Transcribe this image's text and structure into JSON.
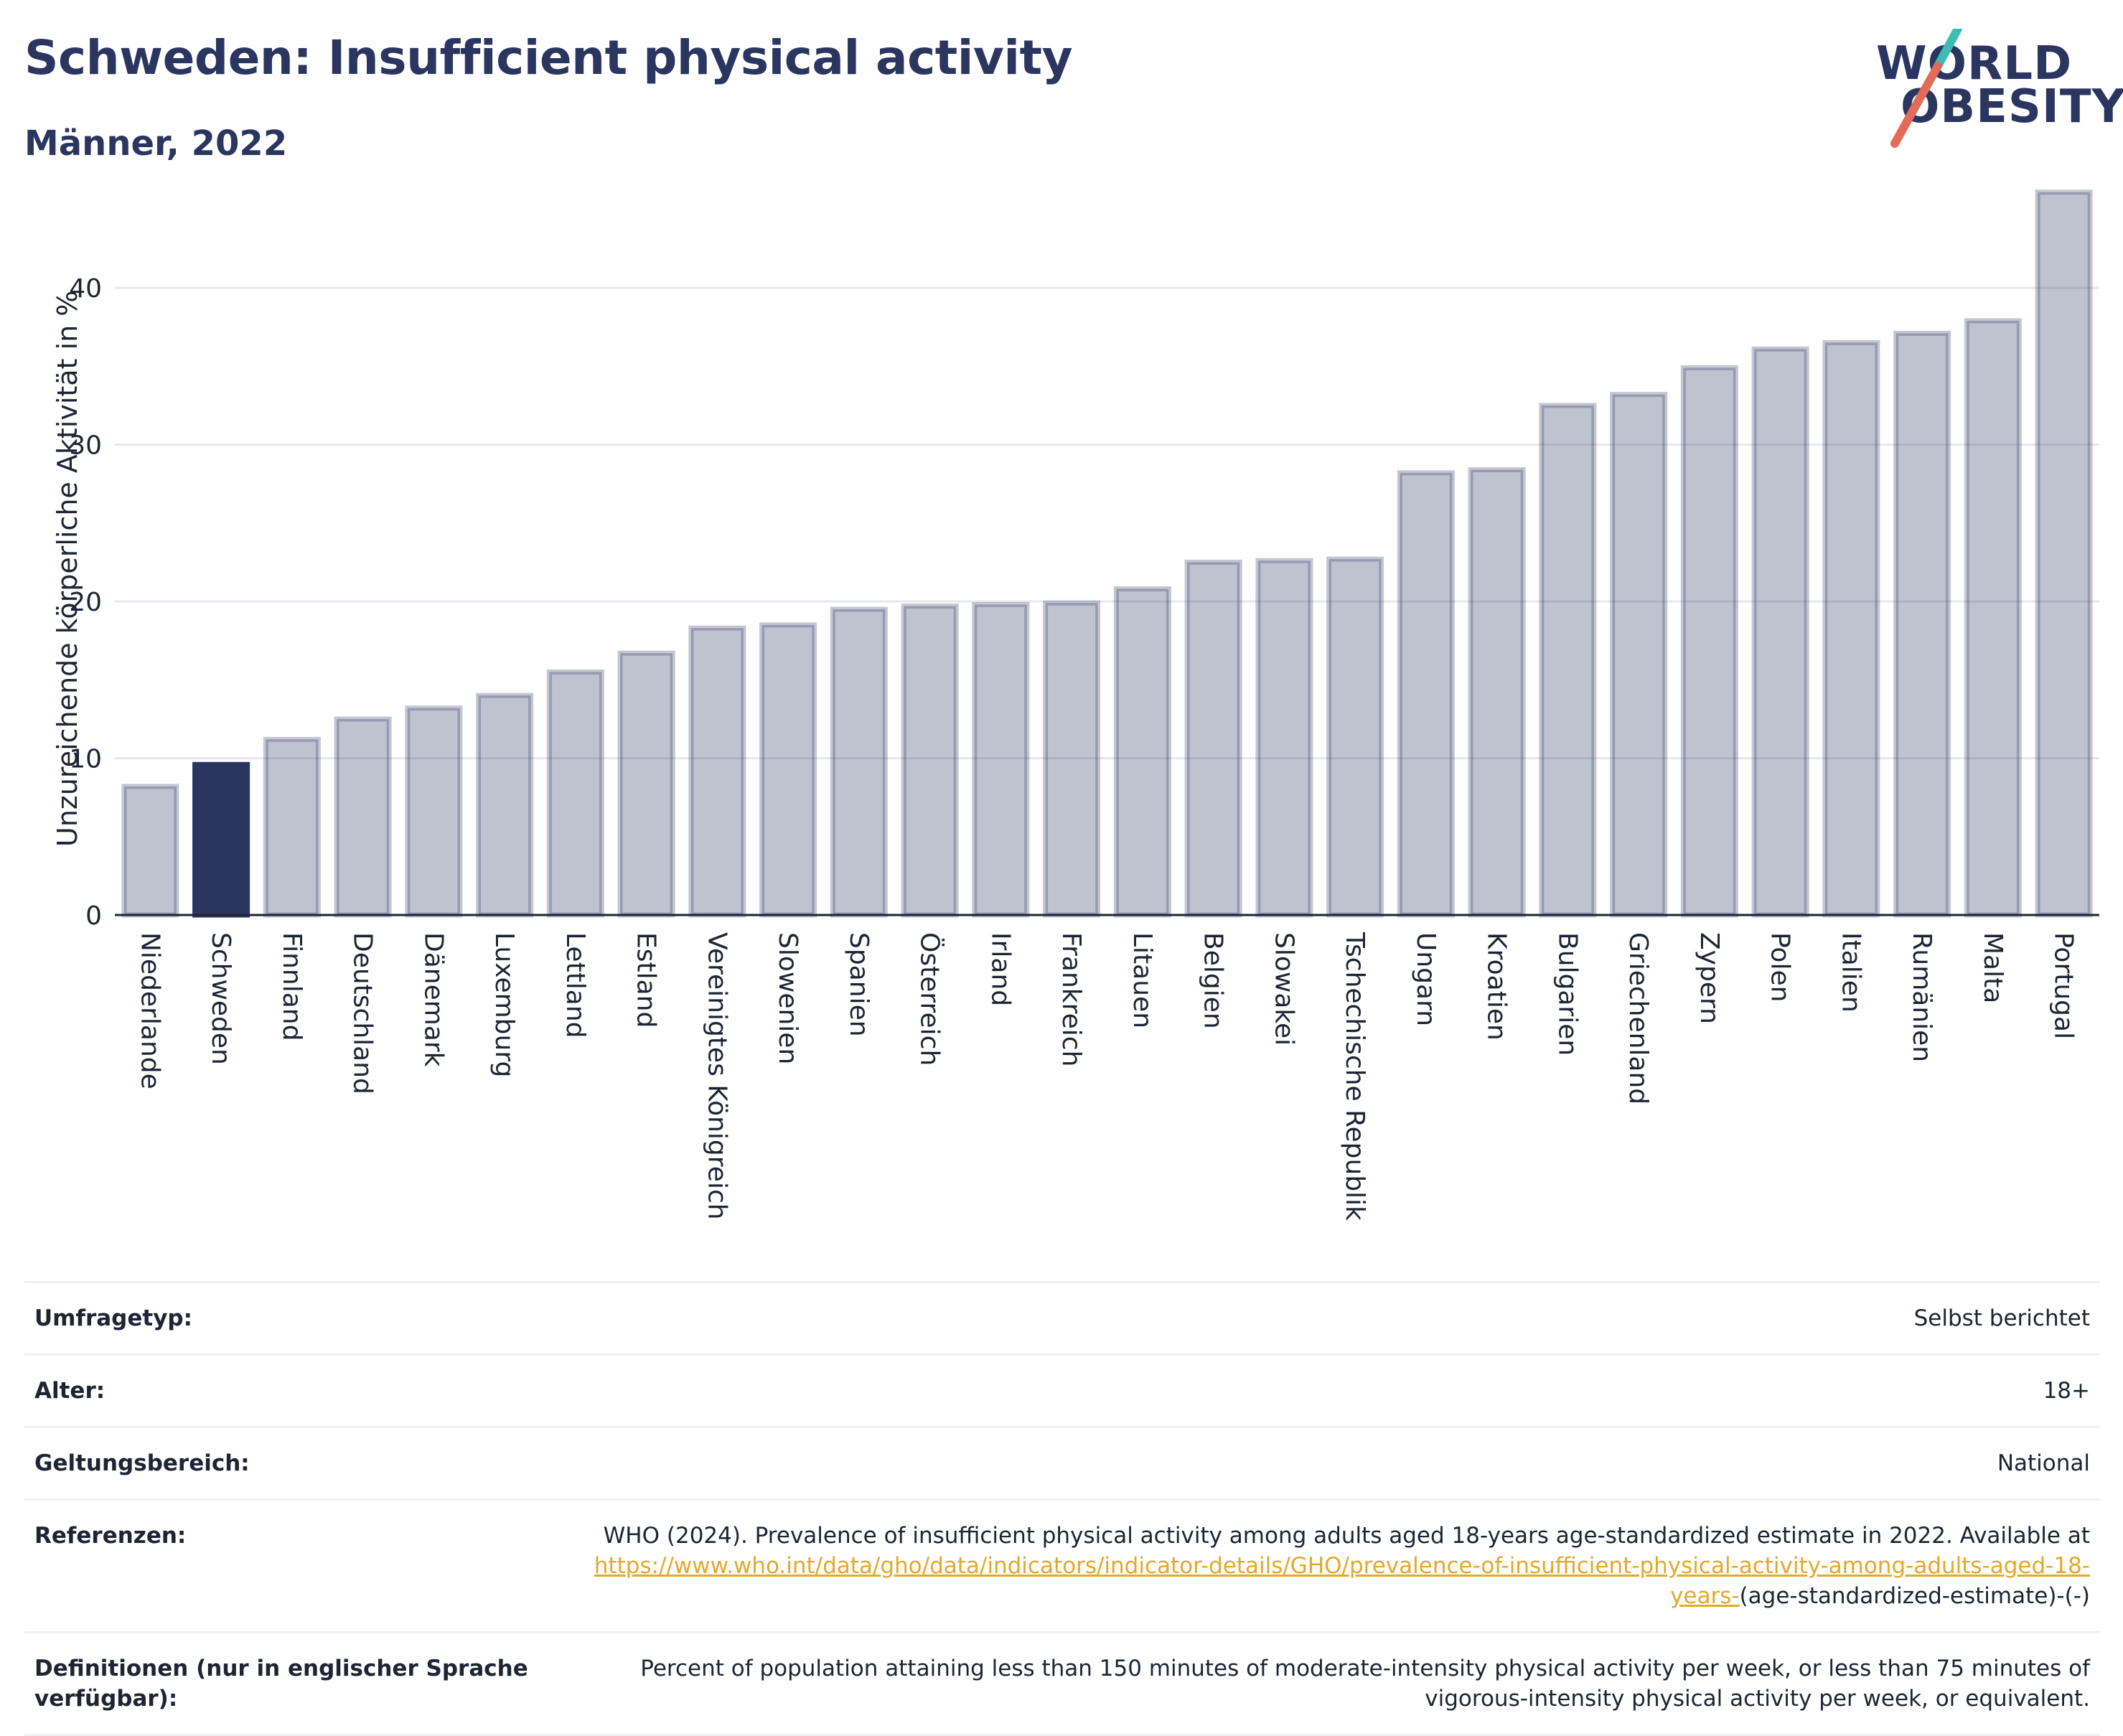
{
  "header": {
    "title": "Schweden: Insufficient physical activity",
    "subtitle": "Männer, 2022"
  },
  "logo": {
    "line1": "WORLD",
    "line2": "OBESITY",
    "accent_teal": "#3dbcb6",
    "accent_coral": "#e36b5a"
  },
  "colors": {
    "bar": "#2b3660",
    "bar_highlight": "#2b3660",
    "grid": "#e6e8ee"
  },
  "chart_data": {
    "type": "bar",
    "title": "Schweden: Insufficient physical activity",
    "subtitle": "Männer, 2022",
    "ylabel": "Unzureichende körperliche Aktivität in %",
    "xlabel": "",
    "ylim": [
      0,
      46
    ],
    "yticks": [
      0,
      10,
      20,
      30,
      40
    ],
    "grid": true,
    "highlight": "Schweden",
    "categories": [
      "Niederlande",
      "Schweden",
      "Finnland",
      "Deutschland",
      "Dänemark",
      "Luxemburg",
      "Lettland",
      "Estland",
      "Vereinigtes Königreich",
      "Slowenien",
      "Spanien",
      "Österreich",
      "Irland",
      "Frankreich",
      "Litauen",
      "Belgien",
      "Slowakei",
      "Tschechische Republik",
      "Ungarn",
      "Kroatien",
      "Bulgarien",
      "Griechenland",
      "Zypern",
      "Polen",
      "Italien",
      "Rumänien",
      "Malta",
      "Portugal"
    ],
    "values": [
      8.2,
      9.6,
      11.2,
      12.5,
      13.2,
      14.0,
      15.5,
      16.7,
      18.3,
      18.5,
      19.5,
      19.7,
      19.8,
      19.9,
      20.8,
      22.5,
      22.6,
      22.7,
      28.2,
      28.4,
      32.5,
      33.2,
      34.9,
      36.1,
      36.5,
      37.1,
      37.9,
      46.1
    ]
  },
  "meta": {
    "survey_type": {
      "label": "Umfragetyp:",
      "value": "Selbst berichtet"
    },
    "age": {
      "label": "Alter:",
      "value": "18+"
    },
    "scope": {
      "label": "Geltungsbereich:",
      "value": "National"
    },
    "references": {
      "label": "Referenzen:",
      "text": "WHO (2024). Prevalence of insufficient physical activity among adults aged 18-years age-standardized estimate in 2022. Available at",
      "link": "https://www.who.int/data/gho/data/indicators/indicator-details/GHO/prevalence-of-insufficient-physical-activity-among-adults-aged-18-years-",
      "suffix": "(age-standardized-estimate)-(-)"
    },
    "definitions": {
      "label": "Definitionen (nur in englischer Sprache verfügbar):",
      "value": "Percent of population attaining less than 150 minutes of moderate-intensity physical activity per week, or less than 75 minutes of vigorous-intensity physical activity per week, or equivalent."
    }
  }
}
